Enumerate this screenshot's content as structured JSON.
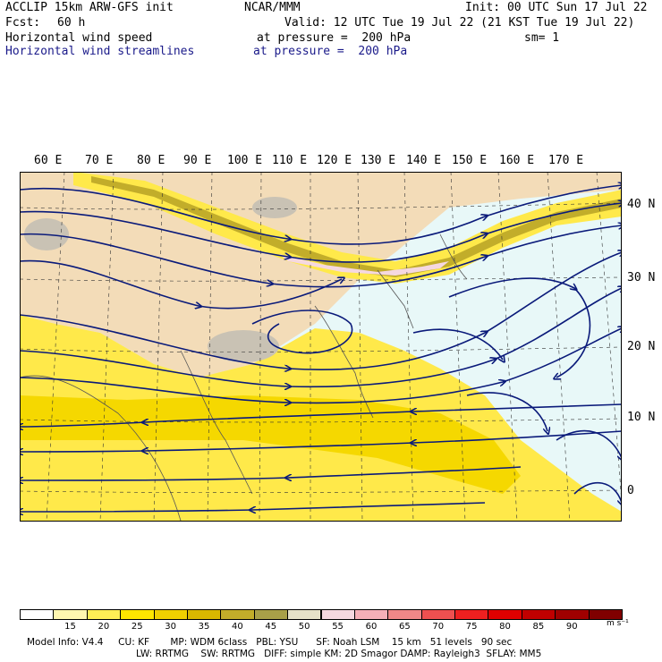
{
  "header": {
    "model": "ACCLIP 15km ARW-GFS init",
    "org": "NCAR/MMM",
    "init": "Init: 00 UTC Sun 17 Jul 22",
    "fcst_label": "Fcst:",
    "fcst_value": "60 h",
    "valid": "Valid: 12 UTC Tue 19 Jul 22 (21 KST Tue 19 Jul 22)",
    "field1": "Horizontal wind speed",
    "field1_level": "at pressure =  200 hPa",
    "field1_sm": "sm= 1",
    "field2": "Horizontal wind streamlines",
    "field2_level": "at pressure =  200 hPa"
  },
  "axes": {
    "longitudes": [
      "60 E",
      "70 E",
      "80 E",
      "90 E",
      "100 E",
      "110 E",
      "120 E",
      "130 E",
      "140 E",
      "150 E",
      "160 E",
      "170 E"
    ],
    "latitudes": [
      "40 N",
      "30 N",
      "20 N",
      "10 N",
      "0"
    ]
  },
  "colorbar": {
    "labels": [
      "15",
      "20",
      "25",
      "30",
      "35",
      "40",
      "45",
      "50",
      "55",
      "60",
      "65",
      "70",
      "75",
      "80",
      "85",
      "90"
    ],
    "unit": "m s⁻¹",
    "colors": [
      "#ffffff",
      "#fff7b0",
      "#ffee55",
      "#ffe600",
      "#f0d000",
      "#d9b800",
      "#c2ad2a",
      "#a8a048",
      "#e6e2c8",
      "#f5d8e0",
      "#f5b0b8",
      "#f08888",
      "#ee5050",
      "#ee2020",
      "#e00000",
      "#c00000",
      "#a00000",
      "#800000"
    ]
  },
  "footer": {
    "line1": "Model Info: V4.4     CU: KF       MP: WDM 6class   PBL: YSU      SF: Noah LSM    15 km   51 levels   90 sec",
    "line2": "LW: RRTMG    SW: RRTMG   DIFF: simple KM: 2D Smagor DAMP: Rayleigh3  SFLAY: MM5"
  }
}
